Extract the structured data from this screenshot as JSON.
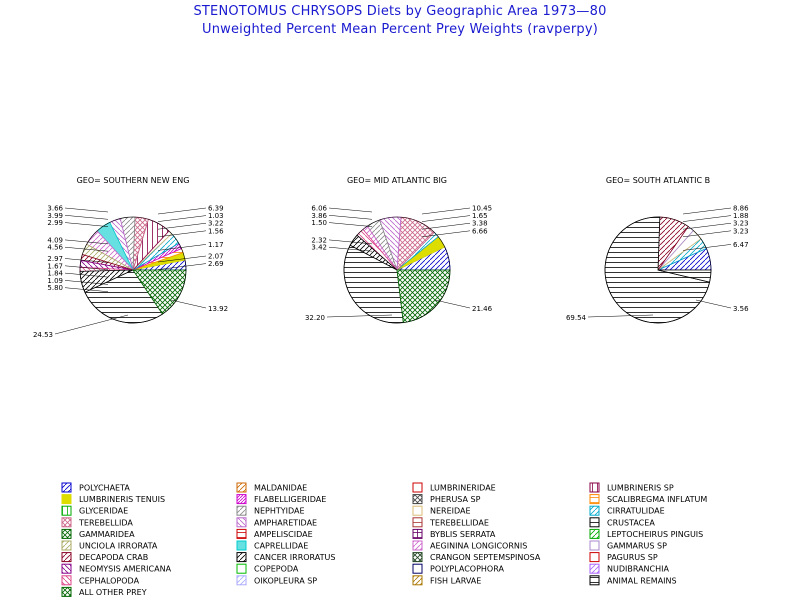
{
  "title": "STENOTOMUS CHRYSOPS Diets by Geographic Area 1973—80",
  "subtitle": "Unweighted Percent Mean Percent Prey  Weights (ravperpy)",
  "legend": [
    {
      "name": "POLYCHAETA",
      "color": "#0000cc",
      "pattern": "diagUp"
    },
    {
      "name": "MALDANIDAE",
      "color": "#cc6600",
      "pattern": "diagUp"
    },
    {
      "name": "LUMBRINERIDAE",
      "color": "#cc0000",
      "pattern": "empty"
    },
    {
      "name": "LUMBRINERIS SP",
      "color": "#880044",
      "pattern": "vert"
    },
    {
      "name": "LUMBRINERIS TENUIS",
      "color": "#dddd00",
      "pattern": "solid"
    },
    {
      "name": "FLABELLIGERIDAE",
      "color": "#cc00cc",
      "pattern": "diagDense"
    },
    {
      "name": "PHERUSA SP",
      "color": "#444444",
      "pattern": "cross"
    },
    {
      "name": "SCALIBREGMA INFLATUM",
      "color": "#ff8800",
      "pattern": "horiz"
    },
    {
      "name": "GLYCERIDAE",
      "color": "#00aa00",
      "pattern": "vert"
    },
    {
      "name": "NEPHTYIDAE",
      "color": "#888888",
      "pattern": "diagUp"
    },
    {
      "name": "NEREIDAE",
      "color": "#ddbb77",
      "pattern": "empty"
    },
    {
      "name": "CIRRATULIDAE",
      "color": "#00aacc",
      "pattern": "diagUp"
    },
    {
      "name": "TEREBELLIDA",
      "color": "#cc6688",
      "pattern": "cross"
    },
    {
      "name": "AMPHARETIDAE",
      "color": "#bb66cc",
      "pattern": "diagDown"
    },
    {
      "name": "TEREBELLIDAE",
      "color": "#aa3333",
      "pattern": "horiz"
    },
    {
      "name": "CRUSTACEA",
      "color": "#000000",
      "pattern": "horiz"
    },
    {
      "name": "GAMMARIDEA",
      "color": "#006600",
      "pattern": "cross"
    },
    {
      "name": "AMPELISCIDAE",
      "color": "#cc0000",
      "pattern": "horiz"
    },
    {
      "name": "BYBLIS SERRATA",
      "color": "#660066",
      "pattern": "grid"
    },
    {
      "name": "LEPTOCHEIRUS PINGUIS",
      "color": "#00aa00",
      "pattern": "diagUp"
    },
    {
      "name": "UNCIOLA IRRORATA",
      "color": "#aaaa66",
      "pattern": "diagUp"
    },
    {
      "name": "CAPRELLIDAE",
      "color": "#00cccc",
      "pattern": "solidHalf"
    },
    {
      "name": "AEGININA LONGICORNIS",
      "color": "#cc66cc",
      "pattern": "diagUp"
    },
    {
      "name": "GAMMARUS SP",
      "color": "#aa88cc",
      "pattern": "empty"
    },
    {
      "name": "DECAPODA CRAB",
      "color": "#880022",
      "pattern": "diagUp"
    },
    {
      "name": "CANCER IRRORATUS",
      "color": "#000000",
      "pattern": "diagUp"
    },
    {
      "name": "CRANGON SEPTEMSPINOSA",
      "color": "#224422",
      "pattern": "cross"
    },
    {
      "name": "PAGURUS SP",
      "color": "#cc0000",
      "pattern": "empty"
    },
    {
      "name": "NEOMYSIS AMERICANA",
      "color": "#880088",
      "pattern": "diagDown"
    },
    {
      "name": "COPEPODA",
      "color": "#00bb00",
      "pattern": "empty"
    },
    {
      "name": "POLYPLACOPHORA",
      "color": "#000066",
      "pattern": "empty"
    },
    {
      "name": "NUDIBRANCHIA",
      "color": "#aa66ff",
      "pattern": "diagUp"
    },
    {
      "name": "CEPHALOPODA",
      "color": "#dd4488",
      "pattern": "diagDown"
    },
    {
      "name": "OIKOPLEURA SP",
      "color": "#aaaaff",
      "pattern": "diagUp"
    },
    {
      "name": "FISH LARVAE",
      "color": "#aa7700",
      "pattern": "diagUp"
    },
    {
      "name": "ANIMAL REMAINS",
      "color": "#000000",
      "pattern": "horiz"
    },
    {
      "name": "ALL OTHER PREY",
      "color": "#006600",
      "pattern": "cross"
    }
  ],
  "chart_data": [
    {
      "type": "pie",
      "title": "GEO= SOUTHERN NEW ENG",
      "labels_left": [
        "3.66",
        "3.99",
        "2.99",
        "4.09",
        "4.56",
        "2.97",
        "1.67",
        "1.84",
        "1.09",
        "5.80"
      ],
      "labels_right": [
        "6.39",
        "1.03",
        "3.22",
        "1.56",
        "1.17",
        "2.07",
        "2.69"
      ],
      "label_bottom_right": "13.92",
      "label_bottom": "24.53",
      "slices": [
        {
          "category": "POLYCHAETA",
          "value": 2.69
        },
        {
          "category": "LUMBRINERIS TENUIS",
          "value": 2.07
        },
        {
          "category": "SCALIBREGMA INFLATUM",
          "value": 1.17
        },
        {
          "category": "FLABELLIGERIDAE",
          "value": 1.56
        },
        {
          "category": "CIRRATULIDAE",
          "value": 3.22
        },
        {
          "category": "NEREIDAE",
          "value": 1.03
        },
        {
          "category": "LUMBRINERIS SP",
          "value": 6.39
        },
        {
          "category": "TEREBELLIDA",
          "value": 3.66
        },
        {
          "category": "NEPHTYIDAE",
          "value": 3.99
        },
        {
          "category": "AMPHARETIDAE",
          "value": 2.99
        },
        {
          "category": "CAPRELLIDAE",
          "value": 4.09
        },
        {
          "category": "AEGININA LONGICORNIS",
          "value": 4.56
        },
        {
          "category": "UNCIOLA IRRORATA",
          "value": 2.97
        },
        {
          "category": "DECAPODA CRAB",
          "value": 1.67
        },
        {
          "category": "NEOMYSIS AMERICANA",
          "value": 1.84
        },
        {
          "category": "CEPHALOPODA",
          "value": 1.09
        },
        {
          "category": "CANCER IRRORATUS",
          "value": 5.8
        },
        {
          "category": "ANIMAL REMAINS",
          "value": 24.53
        },
        {
          "category": "GAMMARIDEA",
          "value": 13.92
        }
      ]
    },
    {
      "type": "pie",
      "title": "GEO= MID ATLANTIC BIG",
      "labels_left": [
        "6.06",
        "3.86",
        "1.50",
        "2.32",
        "3.42"
      ],
      "labels_right": [
        "10.45",
        "1.65",
        "3.38",
        "6.66"
      ],
      "label_bottom_right": "21.46",
      "label_bottom": "32.20",
      "slices": [
        {
          "category": "POLYCHAETA",
          "value": 6.66
        },
        {
          "category": "LUMBRINERIS TENUIS",
          "value": 3.38
        },
        {
          "category": "CIRRATULIDAE",
          "value": 1.65
        },
        {
          "category": "TEREBELLIDA",
          "value": 10.45
        },
        {
          "category": "AMPHARETIDAE",
          "value": 6.06
        },
        {
          "category": "NEPHTYIDAE",
          "value": 3.86
        },
        {
          "category": "AEGININA LONGICORNIS",
          "value": 1.5
        },
        {
          "category": "CEPHALOPODA",
          "value": 2.32
        },
        {
          "category": "CANCER IRRORATUS",
          "value": 3.42
        },
        {
          "category": "ANIMAL REMAINS",
          "value": 32.2
        },
        {
          "category": "GAMMARIDEA",
          "value": 21.46
        }
      ]
    },
    {
      "type": "pie",
      "title": "GEO= SOUTH ATLANTIC B",
      "labels_left": [],
      "labels_right": [
        "8.86",
        "1.88",
        "3.23",
        "3.23",
        "6.47"
      ],
      "label_bottom_right": "3.56",
      "label_bottom": "69.54",
      "slices": [
        {
          "category": "POLYCHAETA",
          "value": 6.47
        },
        {
          "category": "CIRRATULIDAE",
          "value": 3.23
        },
        {
          "category": "NEREIDAE",
          "value": 3.23
        },
        {
          "category": "GAMMARUS SP",
          "value": 1.88
        },
        {
          "category": "DECAPODA CRAB",
          "value": 8.86
        },
        {
          "category": "ANIMAL REMAINS",
          "value": 69.54
        },
        {
          "category": "CRUSTACEA",
          "value": 3.56
        }
      ]
    }
  ]
}
